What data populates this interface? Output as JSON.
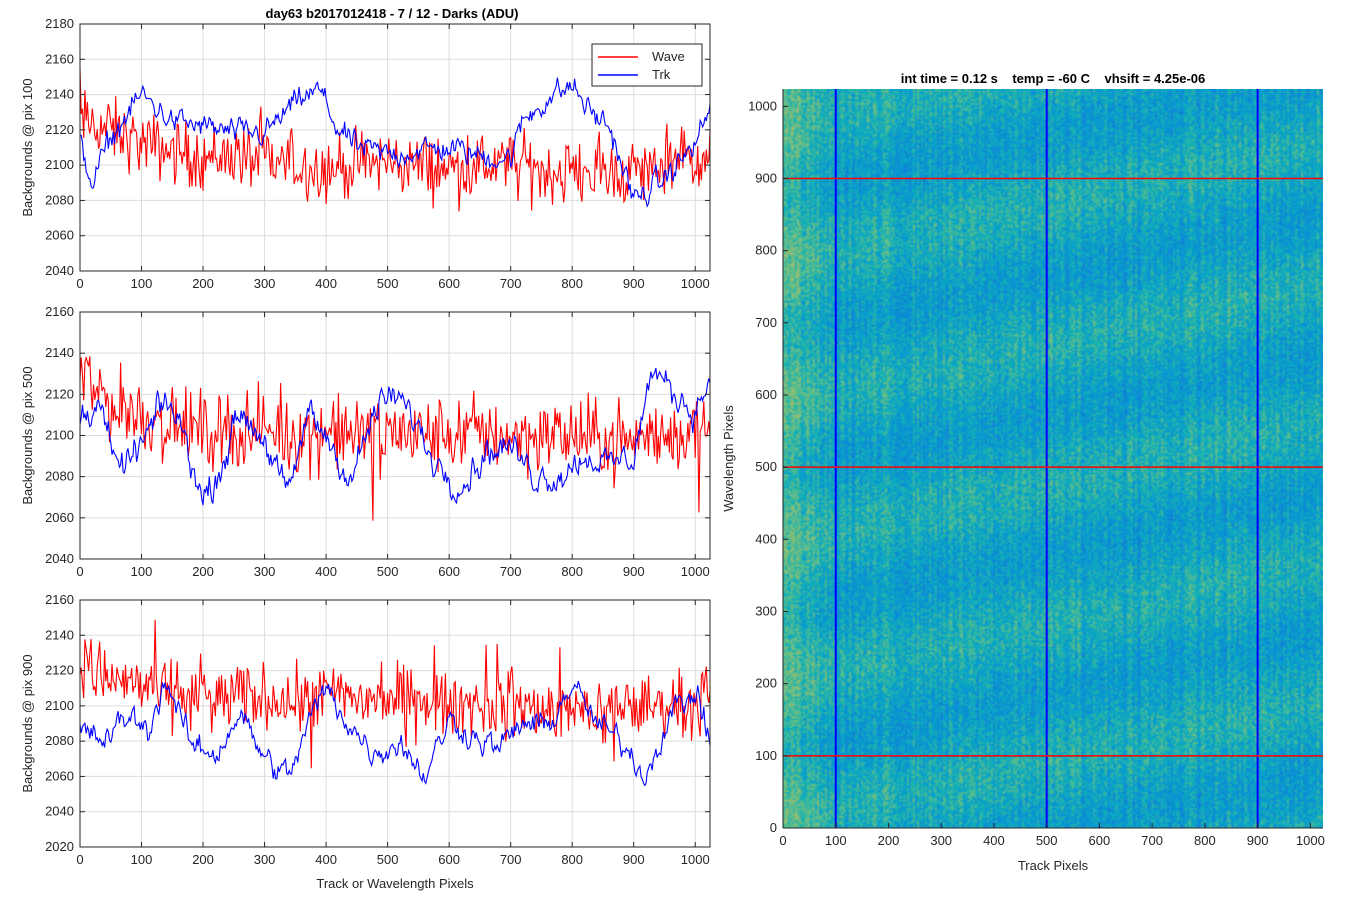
{
  "figure": {
    "title": "day63 b2017012418 - 7 / 12 - Darks (ADU)",
    "shared_xlabel": "Track or Wavelength Pixels"
  },
  "colors": {
    "wave": "#ff0000",
    "trk": "#0000ff",
    "grid": "#dcdcdc",
    "axis": "#262626"
  },
  "chart_data": [
    {
      "type": "line",
      "ylabel": "Backgrounds @ pix 100",
      "xlim": [
        0,
        1024
      ],
      "ylim": [
        2040,
        2180
      ],
      "xticks": [
        0,
        100,
        200,
        300,
        400,
        500,
        600,
        700,
        800,
        900,
        1000
      ],
      "yticks": [
        2040,
        2060,
        2080,
        2100,
        2120,
        2140,
        2160,
        2180
      ],
      "grid": true,
      "legend": {
        "position": "top-right",
        "entries": [
          "Wave",
          "Trk"
        ]
      },
      "series": [
        {
          "name": "Wave",
          "color": "#ff0000",
          "x": [
            0,
            50,
            100,
            150,
            200,
            250,
            300,
            350,
            400,
            450,
            500,
            550,
            600,
            650,
            700,
            750,
            800,
            850,
            900,
            950,
            1000,
            1024
          ],
          "values": [
            2125,
            2120,
            2112,
            2108,
            2104,
            2106,
            2102,
            2100,
            2098,
            2100,
            2102,
            2100,
            2098,
            2100,
            2100,
            2097,
            2096,
            2096,
            2096,
            2100,
            2104,
            2104
          ]
        },
        {
          "name": "Trk",
          "color": "#0000ff",
          "x": [
            0,
            20,
            50,
            100,
            150,
            200,
            250,
            300,
            330,
            360,
            390,
            420,
            450,
            500,
            550,
            600,
            650,
            700,
            720,
            760,
            800,
            830,
            860,
            900,
            950,
            1000,
            1024
          ],
          "values": [
            2112,
            2090,
            2115,
            2140,
            2125,
            2122,
            2118,
            2118,
            2128,
            2138,
            2142,
            2120,
            2110,
            2106,
            2108,
            2110,
            2105,
            2104,
            2125,
            2138,
            2145,
            2130,
            2122,
            2080,
            2092,
            2112,
            2132
          ]
        }
      ]
    },
    {
      "type": "line",
      "ylabel": "Backgrounds @ pix 500",
      "xlim": [
        0,
        1024
      ],
      "ylim": [
        2040,
        2160
      ],
      "xticks": [
        0,
        100,
        200,
        300,
        400,
        500,
        600,
        700,
        800,
        900,
        1000
      ],
      "yticks": [
        2040,
        2060,
        2080,
        2100,
        2120,
        2140,
        2160
      ],
      "grid": true,
      "series": [
        {
          "name": "Wave",
          "color": "#ff0000",
          "x": [
            0,
            50,
            100,
            150,
            200,
            250,
            300,
            350,
            400,
            450,
            500,
            550,
            600,
            650,
            700,
            750,
            800,
            850,
            900,
            950,
            1000,
            1024
          ],
          "values": [
            2130,
            2115,
            2110,
            2105,
            2102,
            2104,
            2102,
            2100,
            2102,
            2100,
            2102,
            2100,
            2100,
            2102,
            2100,
            2100,
            2100,
            2098,
            2098,
            2100,
            2102,
            2104
          ]
        },
        {
          "name": "Trk",
          "color": "#0000ff",
          "x": [
            0,
            30,
            60,
            100,
            140,
            170,
            200,
            230,
            260,
            300,
            340,
            370,
            400,
            440,
            480,
            510,
            540,
            570,
            620,
            660,
            700,
            740,
            780,
            820,
            860,
            900,
            930,
            970,
            1000,
            1024
          ],
          "values": [
            2108,
            2118,
            2082,
            2095,
            2118,
            2100,
            2068,
            2085,
            2112,
            2098,
            2070,
            2112,
            2100,
            2078,
            2112,
            2120,
            2110,
            2090,
            2075,
            2092,
            2095,
            2080,
            2080,
            2090,
            2086,
            2090,
            2132,
            2118,
            2112,
            2128
          ]
        }
      ]
    },
    {
      "type": "line",
      "ylabel": "Backgrounds @ pix 900",
      "xlim": [
        0,
        1024
      ],
      "ylim": [
        2020,
        2160
      ],
      "xticks": [
        0,
        100,
        200,
        300,
        400,
        500,
        600,
        700,
        800,
        900,
        1000
      ],
      "yticks": [
        2020,
        2040,
        2060,
        2080,
        2100,
        2120,
        2140,
        2160
      ],
      "grid": true,
      "series": [
        {
          "name": "Wave",
          "color": "#ff0000",
          "x": [
            0,
            50,
            100,
            150,
            200,
            250,
            300,
            350,
            400,
            450,
            500,
            550,
            600,
            650,
            700,
            750,
            800,
            850,
            900,
            950,
            1000,
            1024
          ],
          "values": [
            2125,
            2115,
            2112,
            2108,
            2106,
            2104,
            2106,
            2104,
            2106,
            2104,
            2104,
            2102,
            2100,
            2102,
            2100,
            2098,
            2098,
            2098,
            2100,
            2100,
            2102,
            2102
          ]
        },
        {
          "name": "Trk",
          "color": "#0000ff",
          "x": [
            0,
            40,
            80,
            110,
            140,
            180,
            220,
            260,
            300,
            340,
            380,
            400,
            440,
            480,
            520,
            560,
            600,
            640,
            680,
            720,
            760,
            800,
            840,
            880,
            920,
            960,
            1000,
            1024
          ],
          "values": [
            2086,
            2080,
            2095,
            2085,
            2115,
            2078,
            2072,
            2096,
            2070,
            2060,
            2098,
            2110,
            2088,
            2072,
            2080,
            2060,
            2092,
            2082,
            2076,
            2090,
            2088,
            2112,
            2090,
            2080,
            2060,
            2096,
            2108,
            2080
          ]
        }
      ]
    },
    {
      "type": "heatmap",
      "title": "int time = 0.12 s    temp = -60 C    vhsift = 4.25e-06",
      "xlabel": "Track Pixels",
      "ylabel": "Wavelength Pixels",
      "xlim": [
        0,
        1024
      ],
      "ylim": [
        0,
        1024
      ],
      "xticks": [
        0,
        100,
        200,
        300,
        400,
        500,
        600,
        700,
        800,
        900,
        1000
      ],
      "yticks": [
        0,
        100,
        200,
        300,
        400,
        500,
        600,
        700,
        800,
        900,
        1000
      ],
      "colormap": "parula",
      "background_level": 0.5,
      "bright_edge_columns": [
        0,
        90
      ],
      "vertical_markers": {
        "x": [
          100,
          500,
          900
        ],
        "color": "#0000ff"
      },
      "horizontal_markers": {
        "y": [
          100,
          500,
          900
        ],
        "color": "#ff0000"
      }
    }
  ]
}
